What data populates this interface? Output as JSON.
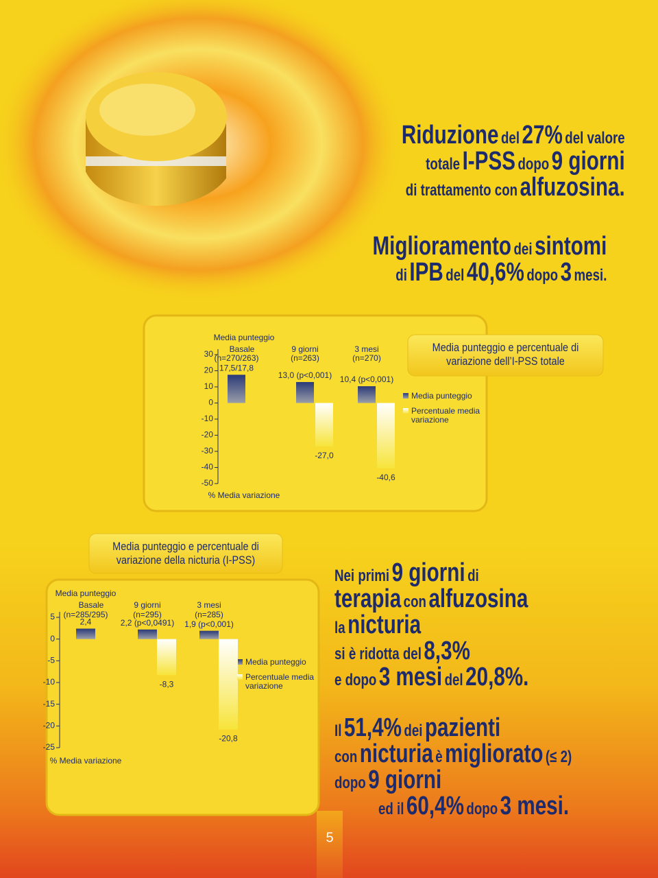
{
  "headline_1": [
    [
      "Riduzione",
      "del",
      "27%",
      "del valore"
    ],
    [
      "totale",
      "I-PSS",
      "dopo",
      "9 giorni"
    ],
    [
      "di trattamento con",
      "alfuzosina."
    ]
  ],
  "headline_2": [
    [
      "Miglioramento",
      "dei",
      "sintomi"
    ],
    [
      "di",
      "IPB",
      "del",
      "40,6%",
      "dopo",
      "3",
      "mesi."
    ]
  ],
  "text_1": [
    [
      "Nei primi",
      "9 giorni",
      "di"
    ],
    [
      "terapia",
      "con",
      "alfuzosina"
    ],
    [
      "la",
      "nicturia"
    ],
    [
      "si è ridotta del",
      "8,3%"
    ],
    [
      "e dopo",
      "3 mesi",
      "del",
      "20,8%."
    ]
  ],
  "text_2": [
    [
      "Il",
      "51,4%",
      "dei",
      "pazienti"
    ],
    [
      "con",
      "nicturia",
      "è",
      "migliorato",
      "(≤ 2)"
    ],
    [
      "dopo",
      "9 giorni"
    ],
    [
      "ed il",
      "60,4%",
      "dopo",
      "3 mesi."
    ]
  ],
  "page_number": "5",
  "chart_data": [
    {
      "type": "bar",
      "title": "Media punteggio e percentuale di variazione dell’I-PSS totale",
      "y_label_top": "Media punteggio",
      "y_label_bottom": "% Media variazione",
      "categories": [
        "Basale",
        "9 giorni",
        "3 mesi"
      ],
      "category_notes": [
        "(n=270/263)",
        "(n=263)",
        "(n=270)"
      ],
      "series": [
        {
          "name": "Media punteggio",
          "color": "#2b3a78",
          "values": [
            17.5,
            13.0,
            10.4
          ],
          "value_labels": [
            "17,5/17,8",
            "13,0 (p<0,001)",
            "10,4 (p<0,001)"
          ]
        },
        {
          "name": "Percentuale media variazione",
          "color": "#f7e43a",
          "values": [
            null,
            -27.0,
            -40.6
          ],
          "value_labels": [
            null,
            "-27,0",
            "-40,6"
          ]
        }
      ],
      "ylim": [
        -50,
        30
      ],
      "yticks": [
        30,
        20,
        10,
        0,
        -10,
        -20,
        -30,
        -40,
        -50
      ]
    },
    {
      "type": "bar",
      "title": "Media punteggio e percentuale di variazione della nicturia (I-PSS)",
      "y_label_top": "Media punteggio",
      "y_label_bottom": "% Media variazione",
      "categories": [
        "Basale",
        "9 giorni",
        "3 mesi"
      ],
      "category_notes": [
        "(n=285/295)",
        "(n=295)",
        "(n=285)"
      ],
      "series": [
        {
          "name": "Media punteggio",
          "color": "#2b3a78",
          "values": [
            2.4,
            2.2,
            1.9
          ],
          "value_labels": [
            "2,4",
            "2,2 (p<0,0491)",
            "1,9 (p<0,001)"
          ]
        },
        {
          "name": "Percentuale media variazione",
          "color": "#f7e43a",
          "values": [
            null,
            -8.3,
            -20.8
          ],
          "value_labels": [
            null,
            "-8,3",
            "-20,8"
          ]
        }
      ],
      "ylim": [
        -25,
        5
      ],
      "yticks": [
        5,
        0,
        -5,
        -10,
        -15,
        -20,
        -25
      ]
    }
  ]
}
